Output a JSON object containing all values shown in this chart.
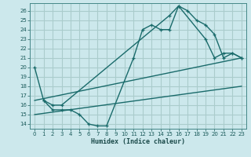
{
  "xlabel": "Humidex (Indice chaleur)",
  "background_color": "#cce8ec",
  "grid_color": "#aacccc",
  "line_color": "#1a6b6b",
  "xlim": [
    -0.5,
    23.5
  ],
  "ylim": [
    13.5,
    26.8
  ],
  "yticks": [
    14,
    15,
    16,
    17,
    18,
    19,
    20,
    21,
    22,
    23,
    24,
    25,
    26
  ],
  "xticks": [
    0,
    1,
    2,
    3,
    4,
    5,
    6,
    7,
    8,
    9,
    10,
    11,
    12,
    13,
    14,
    15,
    16,
    17,
    18,
    19,
    20,
    21,
    22,
    23
  ],
  "line1_x": [
    0,
    1,
    2,
    3,
    4,
    5,
    6,
    7,
    8,
    11,
    12,
    13,
    14,
    15,
    16,
    17,
    18,
    19,
    20,
    21,
    22,
    23
  ],
  "line1_y": [
    20.0,
    16.5,
    15.5,
    15.5,
    15.5,
    15.0,
    14.0,
    13.8,
    13.8,
    21.0,
    24.0,
    24.5,
    24.0,
    24.0,
    26.5,
    26.0,
    25.0,
    24.5,
    23.5,
    21.0,
    21.5,
    21.0
  ],
  "line2_x": [
    1,
    2,
    3,
    15,
    16,
    19,
    20,
    21,
    22,
    23
  ],
  "line2_y": [
    16.5,
    16.0,
    16.0,
    25.5,
    26.5,
    23.0,
    21.0,
    21.5,
    21.5,
    21.0
  ],
  "line3_x": [
    0,
    23
  ],
  "line3_y": [
    16.5,
    21.0
  ],
  "line4_x": [
    0,
    23
  ],
  "line4_y": [
    15.0,
    18.0
  ]
}
